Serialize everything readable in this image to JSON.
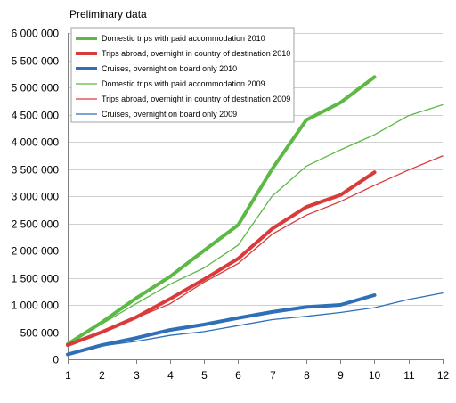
{
  "chart_data": {
    "type": "line",
    "title": "",
    "subtitle": "Preliminary data",
    "xlabel": "",
    "ylabel": "",
    "x": [
      1,
      2,
      3,
      4,
      5,
      6,
      7,
      8,
      9,
      10,
      11,
      12
    ],
    "xlim": [
      1,
      12
    ],
    "ylim": [
      0,
      6000000
    ],
    "y_ticks": [
      0,
      500000,
      1000000,
      1500000,
      2000000,
      2500000,
      3000000,
      3500000,
      4000000,
      4500000,
      5000000,
      5500000,
      6000000
    ],
    "y_tick_labels": [
      "0",
      "500 000",
      "1 000 000",
      "1 500 000",
      "2 000 000",
      "2 500 000",
      "3 000 000",
      "3 500 000",
      "4 000 000",
      "4 500 000",
      "5 000 000",
      "5 500 000",
      "6 000 000"
    ],
    "x_tick_labels": [
      "1",
      "2",
      "3",
      "4",
      "5",
      "6",
      "7",
      "8",
      "9",
      "10",
      "11",
      "12"
    ],
    "grid": "horizontal",
    "legend_position": "top-left",
    "series": [
      {
        "name": "Domestic trips with paid accommodation 2010",
        "color": "#5cb946",
        "weight": "thick",
        "values": [
          280000,
          680000,
          1120000,
          1520000,
          2000000,
          2470000,
          3500000,
          4400000,
          4720000,
          5190000,
          null,
          null
        ]
      },
      {
        "name": "Trips abroad, overnight in country of destination 2010",
        "color": "#d93a3a",
        "weight": "thick",
        "values": [
          260000,
          500000,
          770000,
          1110000,
          1470000,
          1850000,
          2400000,
          2800000,
          3020000,
          3440000,
          null,
          null
        ]
      },
      {
        "name": "Cruises, overnight on board only 2010",
        "color": "#2e6fb8",
        "weight": "thick",
        "values": [
          90000,
          260000,
          390000,
          540000,
          640000,
          760000,
          870000,
          960000,
          1000000,
          1180000,
          null,
          null
        ]
      },
      {
        "name": "Domestic trips with paid accommodation 2009",
        "color": "#5cb946",
        "weight": "thin",
        "values": [
          280000,
          650000,
          1020000,
          1380000,
          1680000,
          2100000,
          3000000,
          3550000,
          3850000,
          4130000,
          4480000,
          4680000
        ]
      },
      {
        "name": "Trips abroad, overnight in country of destination 2009",
        "color": "#d93a3a",
        "weight": "thin",
        "values": [
          250000,
          500000,
          760000,
          1020000,
          1420000,
          1760000,
          2300000,
          2650000,
          2900000,
          3200000,
          3480000,
          3740000
        ]
      },
      {
        "name": "Cruises, overnight on board only 2009",
        "color": "#2e6fb8",
        "weight": "thin",
        "values": [
          90000,
          250000,
          330000,
          440000,
          510000,
          620000,
          730000,
          790000,
          860000,
          950000,
          1100000,
          1220000
        ]
      }
    ]
  }
}
